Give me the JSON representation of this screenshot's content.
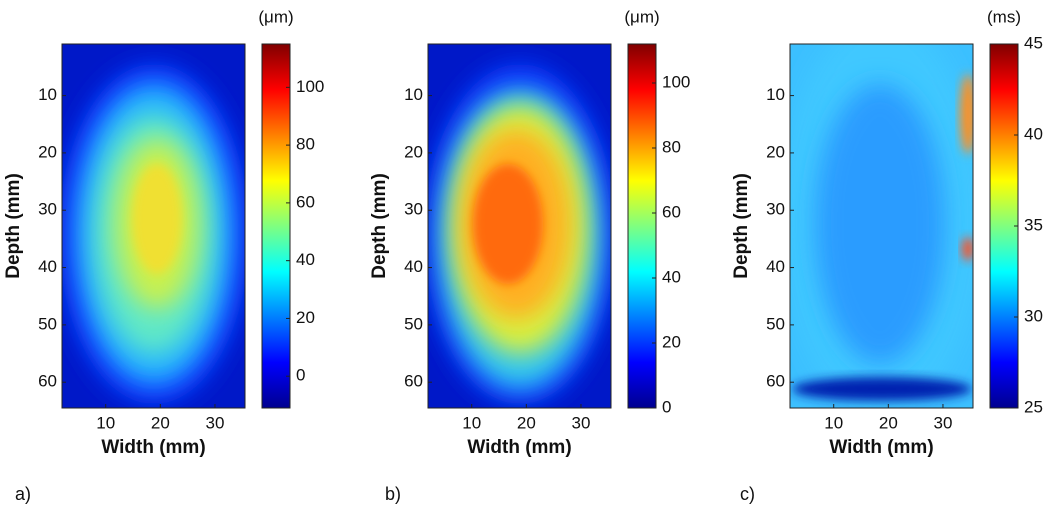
{
  "chart_data": [
    {
      "type": "heatmap",
      "panel_label": "a)",
      "xlabel": "Width (mm)",
      "ylabel": "Depth (mm)",
      "colorbar_label": "(μm)",
      "xlim": [
        2,
        35.5
      ],
      "xticks": [
        10,
        20,
        30
      ],
      "ylim": [
        1,
        64.5
      ],
      "yticks": [
        10,
        20,
        30,
        40,
        50,
        60
      ],
      "clim": [
        -11,
        115
      ],
      "cticks": [
        0,
        20,
        40,
        60,
        80,
        100
      ],
      "colormap": "jet"
    },
    {
      "type": "heatmap",
      "panel_label": "b)",
      "xlabel": "Width (mm)",
      "ylabel": "Depth (mm)",
      "colorbar_label": "(μm)",
      "xlim": [
        2,
        35.5
      ],
      "xticks": [
        10,
        20,
        30
      ],
      "ylim": [
        1,
        64.5
      ],
      "yticks": [
        10,
        20,
        30,
        40,
        50,
        60
      ],
      "clim": [
        0,
        112
      ],
      "cticks": [
        0,
        20,
        40,
        60,
        80,
        100
      ],
      "colormap": "jet"
    },
    {
      "type": "heatmap",
      "panel_label": "c)",
      "xlabel": "Width (mm)",
      "ylabel": "Depth (mm)",
      "colorbar_label": "(ms)",
      "xlim": [
        2,
        35.5
      ],
      "xticks": [
        10,
        20,
        30
      ],
      "ylim": [
        1,
        64.5
      ],
      "yticks": [
        10,
        20,
        30,
        40,
        50,
        60
      ],
      "clim": [
        25,
        45
      ],
      "cticks": [
        25,
        30,
        35,
        40,
        45
      ],
      "colormap": "jet"
    }
  ]
}
